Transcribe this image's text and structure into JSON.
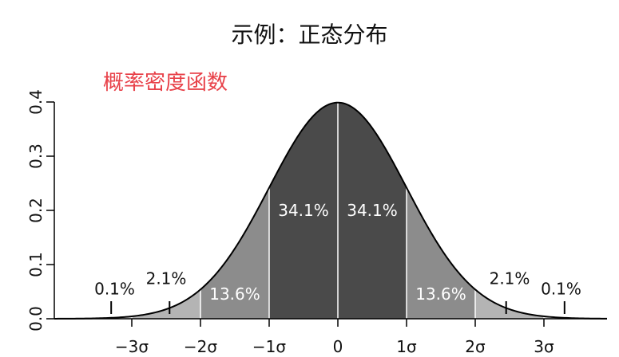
{
  "title": "示例：正态分布",
  "subtitle": "概率密度函数",
  "chart_data": {
    "type": "area",
    "title": "示例：正态分布",
    "subtitle": "概率密度函数",
    "distribution": "standard normal",
    "mean": 0,
    "sd": 1,
    "xlim": [
      -4,
      4
    ],
    "ylim": [
      0,
      0.4
    ],
    "x_ticks": [
      {
        "value": -3,
        "label": "−3σ"
      },
      {
        "value": -2,
        "label": "−2σ"
      },
      {
        "value": -1,
        "label": "−1σ"
      },
      {
        "value": 0,
        "label": "0"
      },
      {
        "value": 1,
        "label": "1σ"
      },
      {
        "value": 2,
        "label": "2σ"
      },
      {
        "value": 3,
        "label": "3σ"
      }
    ],
    "y_ticks": [
      {
        "value": 0.0,
        "label": "0.0"
      },
      {
        "value": 0.1,
        "label": "0.1"
      },
      {
        "value": 0.2,
        "label": "0.2"
      },
      {
        "value": 0.3,
        "label": "0.3"
      },
      {
        "value": 0.4,
        "label": "0.4"
      }
    ],
    "bands": [
      {
        "from": -4,
        "to": -3,
        "color": "#d9d9d9"
      },
      {
        "from": -3,
        "to": -2,
        "color": "#b4b4b4"
      },
      {
        "from": -2,
        "to": -1,
        "color": "#8c8c8c"
      },
      {
        "from": -1,
        "to": 0,
        "color": "#4a4a4a"
      },
      {
        "from": 0,
        "to": 1,
        "color": "#4a4a4a"
      },
      {
        "from": 1,
        "to": 2,
        "color": "#8c8c8c"
      },
      {
        "from": 2,
        "to": 3,
        "color": "#b4b4b4"
      },
      {
        "from": 3,
        "to": 4,
        "color": "#d9d9d9"
      }
    ],
    "percent_labels": [
      {
        "text": "34.1%",
        "x": -0.5,
        "y": 0.19,
        "anchor": "middle",
        "inside": true
      },
      {
        "text": "34.1%",
        "x": 0.5,
        "y": 0.19,
        "anchor": "middle",
        "inside": true
      },
      {
        "text": "13.6%",
        "x": -1.5,
        "y": 0.035,
        "anchor": "middle",
        "inside": true
      },
      {
        "text": "13.6%",
        "x": 1.5,
        "y": 0.035,
        "anchor": "middle",
        "inside": true
      },
      {
        "text": "2.1%",
        "x": -2.5,
        "y": 0.064,
        "anchor": "middle",
        "inside": false
      },
      {
        "text": "2.1%",
        "x": 2.5,
        "y": 0.064,
        "anchor": "middle",
        "inside": false
      },
      {
        "text": "0.1%",
        "x": -3.25,
        "y": 0.045,
        "anchor": "middle",
        "inside": false
      },
      {
        "text": "0.1%",
        "x": 3.25,
        "y": 0.045,
        "anchor": "middle",
        "inside": false
      }
    ],
    "label_markers": [
      -3.3,
      -2.45,
      2.45,
      3.3
    ]
  }
}
